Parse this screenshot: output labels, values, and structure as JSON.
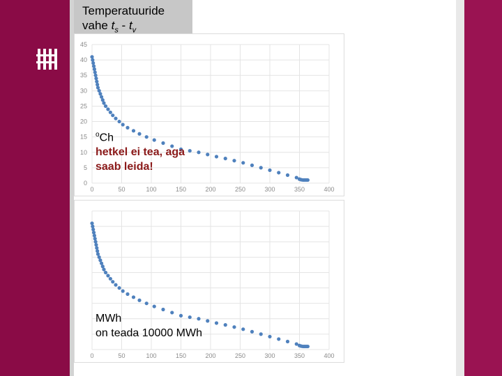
{
  "title": {
    "line1": "Temperatuuride",
    "line2_prefix": "vahe ",
    "ts": "t",
    "ts_sub": "s",
    "sep": " - ",
    "tv": "t",
    "tv_sub": "v"
  },
  "annotation1": {
    "sup": "o",
    "unit": "Ch",
    "line2": "hetkel ei tea, aga",
    "line3": "saab leida!"
  },
  "annotation2": {
    "line1": "MWh",
    "line2": "on teada 10000 MWh"
  },
  "colors": {
    "marker": "#4f81bd",
    "grid": "#e4e4e4",
    "band": "#8a0b46",
    "red_text": "#8b1a1a"
  },
  "chart_data": [
    {
      "type": "scatter",
      "xlim": [
        0,
        400
      ],
      "ylim": [
        0,
        45
      ],
      "x_ticks": [
        "0",
        "50",
        "100",
        "150",
        "200",
        "250",
        "300",
        "350",
        "400"
      ],
      "y_ticks": [
        "0",
        "5",
        "10",
        "15",
        "20",
        "25",
        "30",
        "35",
        "40",
        "45"
      ],
      "grid": true,
      "series": [
        {
          "x": [
            0,
            1,
            2,
            3,
            4,
            5,
            6,
            7,
            8,
            9,
            10,
            12,
            14,
            16,
            18,
            20,
            23,
            27,
            31,
            35,
            40,
            46,
            52,
            60,
            70,
            80,
            92,
            105,
            120,
            135,
            150,
            165,
            180,
            195,
            210,
            225,
            240,
            255,
            270,
            285,
            300,
            315,
            330,
            345,
            350,
            353,
            356,
            358,
            360,
            362,
            364
          ],
          "y": [
            41,
            40,
            39,
            38,
            37,
            36,
            35,
            34,
            33,
            32,
            31,
            30,
            29,
            28,
            27,
            26,
            25,
            24,
            23,
            22,
            21,
            20,
            19,
            18,
            17,
            16,
            15,
            14,
            13,
            12,
            11,
            10.5,
            10,
            9.3,
            8.6,
            8,
            7.3,
            6.6,
            5.8,
            5,
            4.2,
            3.4,
            2.6,
            1.8,
            1.3,
            1.1,
            1,
            1,
            1,
            1,
            1
          ]
        }
      ]
    },
    {
      "type": "scatter",
      "xlim": [
        0,
        400
      ],
      "x_ticks": [
        "0",
        "50",
        "100",
        "150",
        "200",
        "250",
        "300",
        "350",
        "400"
      ],
      "grid": true,
      "series": [
        {
          "x": [
            0,
            1,
            2,
            3,
            4,
            5,
            6,
            7,
            8,
            9,
            10,
            12,
            14,
            16,
            18,
            20,
            23,
            27,
            31,
            35,
            40,
            46,
            52,
            60,
            70,
            80,
            92,
            105,
            120,
            135,
            150,
            165,
            180,
            195,
            210,
            225,
            240,
            255,
            270,
            285,
            300,
            315,
            330,
            345,
            350,
            353,
            356,
            358,
            360,
            362,
            364
          ],
          "y": [
            41,
            40,
            39,
            38,
            37,
            36,
            35,
            34,
            33,
            32,
            31,
            30,
            29,
            28,
            27,
            26,
            25,
            24,
            23,
            22,
            21,
            20,
            19,
            18,
            17,
            16,
            15,
            14,
            13,
            12,
            11,
            10.5,
            10,
            9.3,
            8.6,
            8,
            7.3,
            6.6,
            5.8,
            5,
            4.2,
            3.4,
            2.6,
            1.8,
            1.3,
            1.1,
            1,
            1,
            1,
            1,
            1
          ]
        }
      ]
    }
  ]
}
